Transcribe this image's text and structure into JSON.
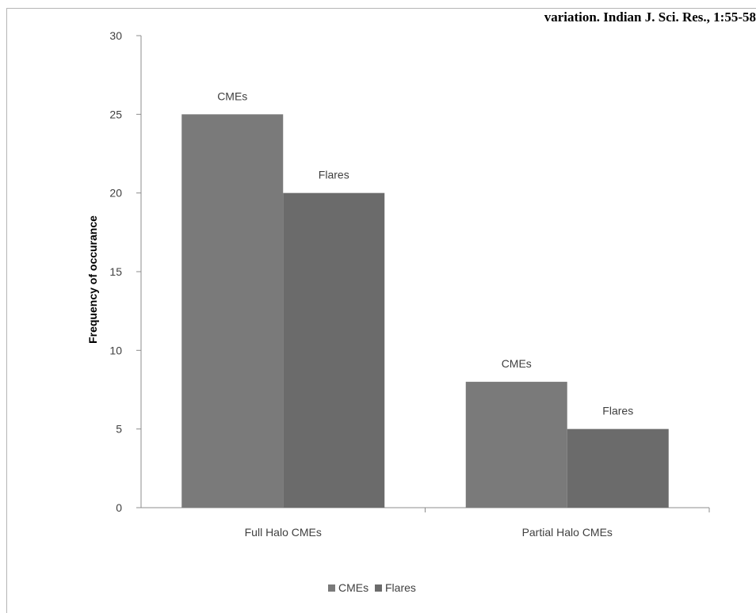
{
  "header": {
    "citation": "variation. Indian J. Sci. Res., 1:55-58"
  },
  "chart_data": {
    "type": "bar",
    "categories": [
      "Full Halo CMEs",
      "Partial Halo CMEs"
    ],
    "series": [
      {
        "name": "CMEs",
        "values": [
          25,
          8
        ],
        "color": "#7a7a7a"
      },
      {
        "name": "Flares",
        "values": [
          20,
          5
        ],
        "color": "#6b6b6b"
      }
    ],
    "title": "",
    "xlabel": "",
    "ylabel": "Frequency of occurance",
    "ylim": [
      0,
      30
    ],
    "yticks": [
      0,
      5,
      10,
      15,
      20,
      25,
      30
    ],
    "data_labels": true,
    "grid": false,
    "legend_position": "bottom"
  }
}
